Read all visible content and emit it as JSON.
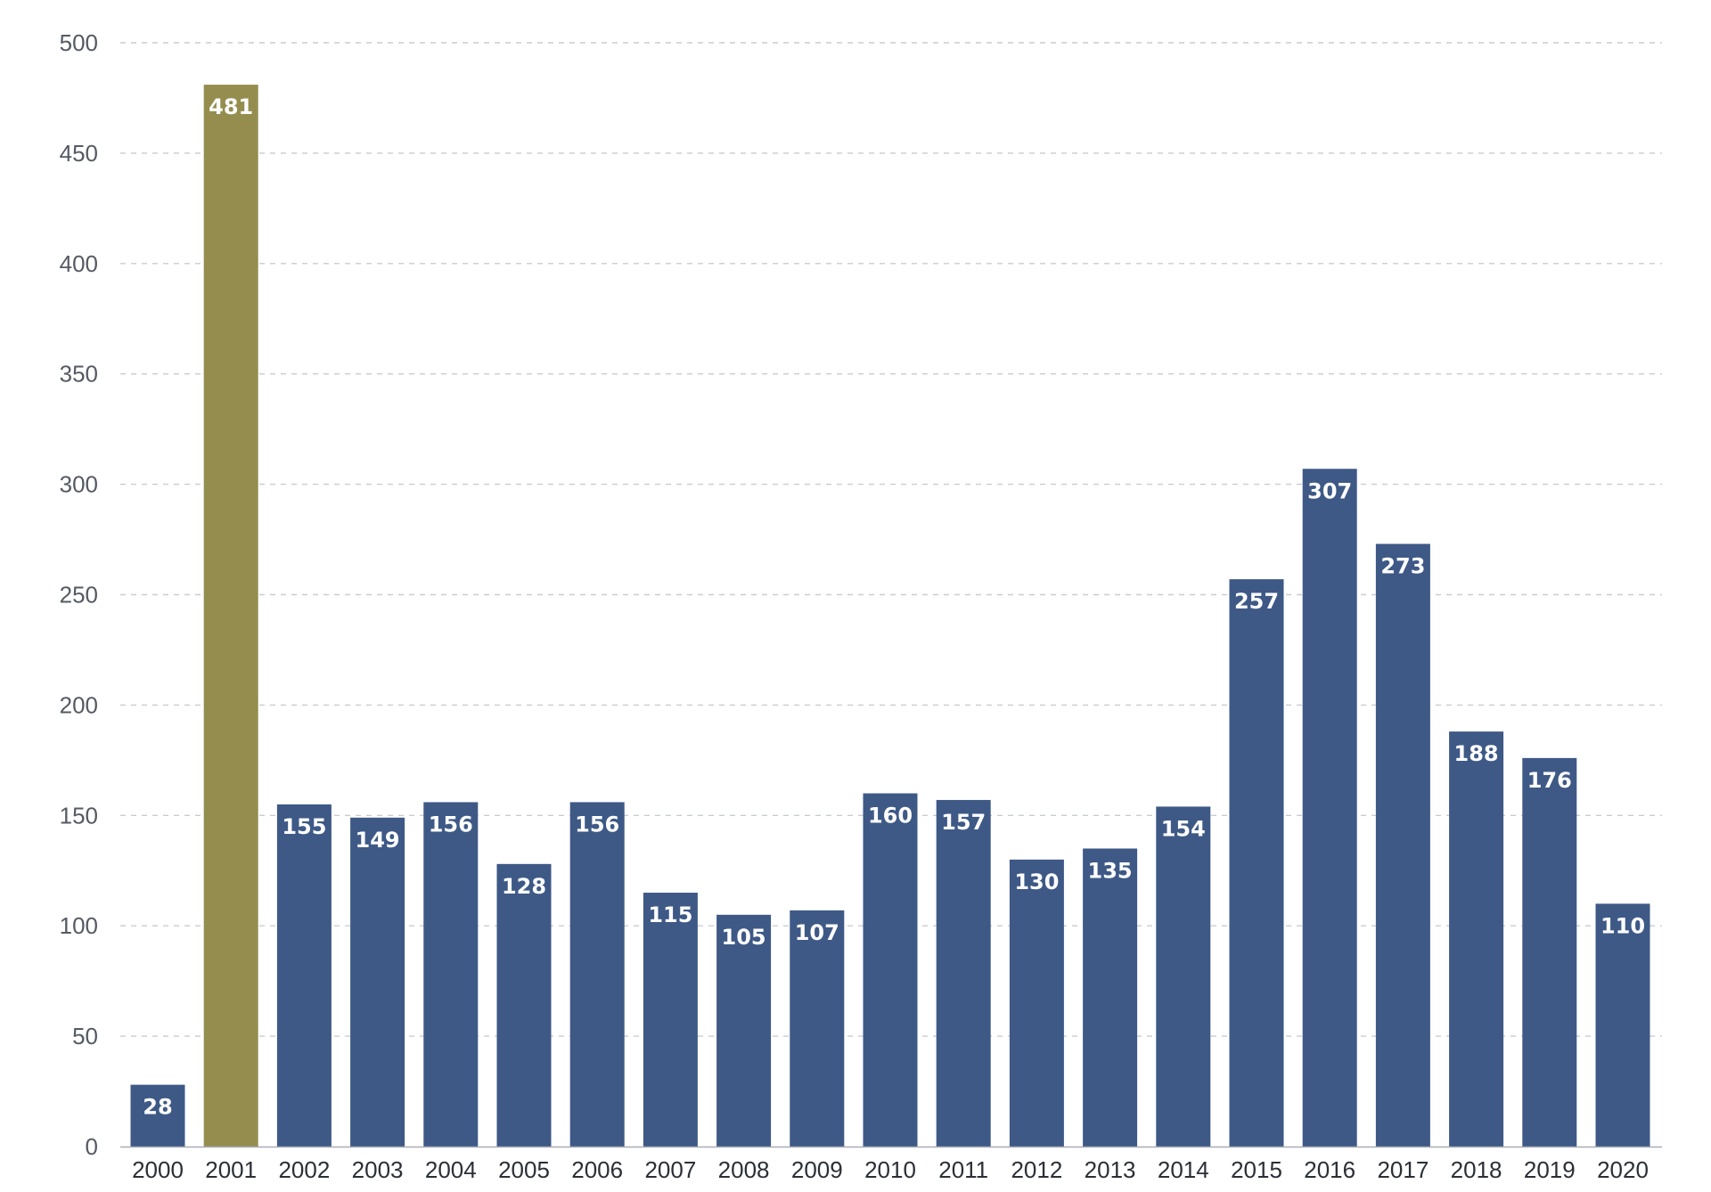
{
  "chart_data": {
    "type": "bar",
    "title": "",
    "xlabel": "",
    "ylabel": "",
    "categories": [
      "2000",
      "2001",
      "2002",
      "2003",
      "2004",
      "2005",
      "2006",
      "2007",
      "2008",
      "2009",
      "2010",
      "2011",
      "2012",
      "2013",
      "2014",
      "2015",
      "2016",
      "2017",
      "2018",
      "2019",
      "2020"
    ],
    "values": [
      28,
      481,
      155,
      149,
      156,
      128,
      156,
      115,
      105,
      107,
      160,
      157,
      130,
      135,
      154,
      257,
      307,
      273,
      188,
      176,
      110
    ],
    "ylim": [
      0,
      500
    ],
    "yticks": [
      0,
      50,
      100,
      150,
      200,
      250,
      300,
      350,
      400,
      450,
      500
    ],
    "grid": true,
    "data_labels": true,
    "colors": {
      "default_bar": "#3e5986",
      "highlight_bar": "#948d4e",
      "highlight_category": "2001"
    }
  }
}
